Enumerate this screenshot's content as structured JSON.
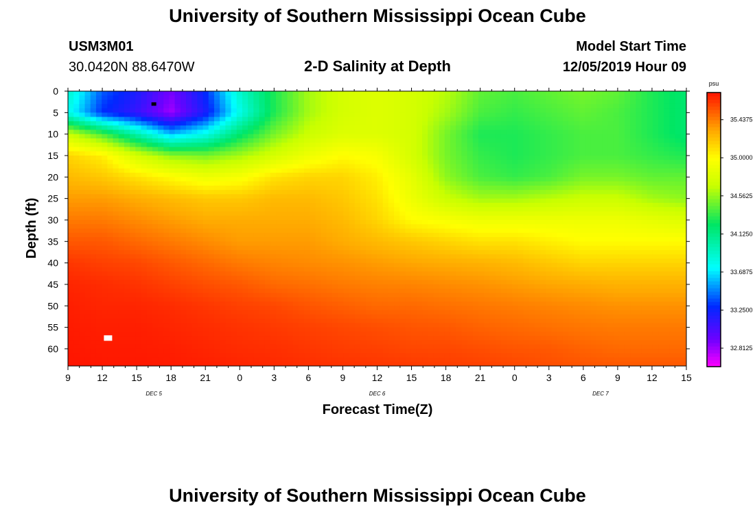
{
  "header": {
    "title": "University of Southern Mississippi Ocean Cube",
    "station_id": "USM3M01",
    "coordinates": "30.0420N 88.6470W",
    "subtitle": "2-D Salinity at Depth",
    "model_start_label": "Model Start Time",
    "model_start_value": "12/05/2019 Hour 09",
    "footer_title": "University of Southern Mississippi Ocean Cube"
  },
  "chart_data": {
    "type": "heatmap",
    "title": "2-D Salinity at Depth",
    "xlabel": "Forecast Time(Z)",
    "ylabel": "Depth (ft)",
    "x_ticks": [
      "9",
      "12",
      "15",
      "18",
      "21",
      "0",
      "3",
      "6",
      "9",
      "12",
      "15",
      "18",
      "21",
      "0",
      "3",
      "6",
      "9",
      "12",
      "15"
    ],
    "x_range_hours": [
      0,
      54
    ],
    "date_labels": [
      {
        "text": "DEC 5",
        "hour": 7.5
      },
      {
        "text": "DEC 6",
        "hour": 27
      },
      {
        "text": "DEC 7",
        "hour": 46.5
      }
    ],
    "y_ticks": [
      0,
      5,
      10,
      15,
      20,
      25,
      30,
      35,
      40,
      45,
      50,
      55,
      60
    ],
    "ylim": [
      0,
      64
    ],
    "colorbar": {
      "unit": "psu",
      "min": 32.6,
      "max": 35.75,
      "labels": [
        "35.4375",
        "35.0000",
        "34.5625",
        "34.1250",
        "33.6875",
        "33.2500",
        "32.8125"
      ],
      "label_values": [
        35.4375,
        35.0,
        34.5625,
        34.125,
        33.6875,
        33.25,
        32.8125
      ]
    },
    "salinity_grid": {
      "x_hours": [
        0,
        3,
        6,
        9,
        12,
        15,
        18,
        21,
        24,
        27,
        30,
        33,
        36,
        39,
        42,
        45,
        48,
        51,
        54
      ],
      "y_depths": [
        0,
        5,
        10,
        15,
        20,
        25,
        30,
        35,
        40,
        45,
        50,
        55,
        60,
        64
      ],
      "values": [
        [
          33.9,
          33.4,
          33.2,
          32.9,
          33.3,
          33.9,
          34.3,
          34.6,
          34.75,
          34.8,
          34.75,
          34.65,
          34.45,
          34.4,
          34.45,
          34.5,
          34.45,
          34.3,
          34.2
        ],
        [
          33.8,
          33.3,
          33.1,
          32.8,
          33.2,
          33.8,
          34.3,
          34.6,
          34.75,
          34.8,
          34.75,
          34.6,
          34.4,
          34.35,
          34.4,
          34.45,
          34.4,
          34.3,
          34.2
        ],
        [
          34.7,
          34.4,
          34.0,
          33.6,
          33.8,
          34.2,
          34.5,
          34.7,
          34.8,
          34.8,
          34.75,
          34.5,
          34.3,
          34.3,
          34.35,
          34.4,
          34.4,
          34.3,
          34.2
        ],
        [
          35.15,
          35.05,
          34.75,
          34.55,
          34.5,
          34.6,
          34.75,
          34.9,
          35.0,
          34.95,
          34.75,
          34.5,
          34.35,
          34.3,
          34.35,
          34.4,
          34.4,
          34.35,
          34.3
        ],
        [
          35.25,
          35.2,
          35.1,
          35.0,
          34.9,
          34.95,
          35.1,
          35.15,
          35.15,
          35.05,
          34.85,
          34.55,
          34.4,
          34.35,
          34.4,
          34.5,
          34.5,
          34.45,
          34.45
        ],
        [
          35.35,
          35.35,
          35.3,
          35.25,
          35.2,
          35.2,
          35.25,
          35.25,
          35.2,
          35.1,
          34.9,
          34.7,
          34.6,
          34.6,
          34.65,
          34.7,
          34.7,
          34.6,
          34.55
        ],
        [
          35.45,
          35.45,
          35.4,
          35.35,
          35.3,
          35.3,
          35.3,
          35.3,
          35.25,
          35.15,
          35.0,
          34.95,
          34.9,
          34.9,
          34.9,
          34.9,
          34.9,
          34.85,
          34.8
        ],
        [
          35.55,
          35.55,
          35.5,
          35.45,
          35.4,
          35.35,
          35.35,
          35.35,
          35.3,
          35.25,
          35.2,
          35.15,
          35.1,
          35.1,
          35.05,
          35.0,
          35.0,
          35.0,
          35.0
        ],
        [
          35.65,
          35.62,
          35.6,
          35.55,
          35.5,
          35.45,
          35.42,
          35.4,
          35.38,
          35.35,
          35.32,
          35.3,
          35.28,
          35.25,
          35.2,
          35.15,
          35.15,
          35.15,
          35.15
        ],
        [
          35.7,
          35.68,
          35.66,
          35.62,
          35.58,
          35.55,
          35.5,
          35.48,
          35.45,
          35.43,
          35.42,
          35.4,
          35.38,
          35.35,
          35.32,
          35.3,
          35.28,
          35.28,
          35.28
        ],
        [
          35.72,
          35.7,
          35.7,
          35.68,
          35.65,
          35.62,
          35.6,
          35.56,
          35.53,
          35.5,
          35.5,
          35.48,
          35.46,
          35.44,
          35.42,
          35.4,
          35.38,
          35.38,
          35.38
        ],
        [
          35.73,
          35.72,
          35.72,
          35.7,
          35.68,
          35.66,
          35.64,
          35.62,
          35.6,
          35.58,
          35.56,
          35.55,
          35.52,
          35.5,
          35.48,
          35.46,
          35.45,
          35.45,
          35.45
        ],
        [
          35.74,
          35.73,
          35.73,
          35.72,
          35.7,
          35.68,
          35.67,
          35.65,
          35.63,
          35.62,
          35.6,
          35.6,
          35.58,
          35.56,
          35.55,
          35.52,
          35.5,
          35.5,
          35.5
        ],
        [
          35.75,
          35.74,
          35.74,
          35.73,
          35.72,
          35.7,
          35.69,
          35.67,
          35.66,
          35.65,
          35.64,
          35.63,
          35.62,
          35.6,
          35.58,
          35.56,
          35.55,
          35.55,
          35.55
        ]
      ]
    },
    "annotations": [
      {
        "type": "marker",
        "color": "#000000",
        "hour": 7.5,
        "depth": 3
      },
      {
        "type": "marker",
        "color": "#ffffff",
        "hour": 3.5,
        "depth": 57.5
      }
    ]
  }
}
